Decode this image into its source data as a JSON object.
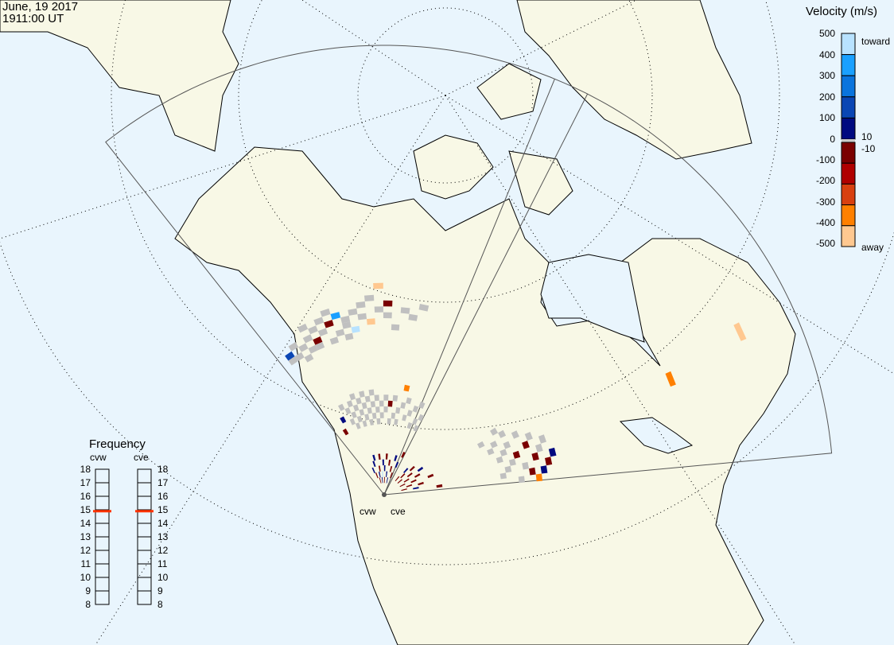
{
  "header": {
    "date": "June, 19 2017",
    "time": "1911:00 UT"
  },
  "colors": {
    "ocean": "#e9f5fd",
    "land": "#f8f8e6",
    "ground_scatter": "#c0c0c0",
    "freq_marker": "#ff3300"
  },
  "velocity_scale": {
    "title": "Velocity (m/s)",
    "ticks": [
      "500",
      "400",
      "300",
      "200",
      "100",
      "0",
      "-100",
      "-200",
      "-300",
      "-400",
      "-500"
    ],
    "toward_label": "toward",
    "away_label": "away",
    "threshold_pos": "10",
    "threshold_neg": "-10",
    "colors": [
      "#b8e2ff",
      "#1aa0ff",
      "#0a74dd",
      "#0a46b4",
      "#000a80",
      "#c8c8c8",
      "#7a0000",
      "#b00000",
      "#d84010",
      "#ff8000",
      "#ffc890"
    ]
  },
  "frequency": {
    "title": "Frequency",
    "radars": [
      {
        "name": "cvw",
        "value_mhz": 14.9
      },
      {
        "name": "cve",
        "value_mhz": 14.9
      }
    ],
    "ticks": [
      "18",
      "17",
      "16",
      "15",
      "14",
      "13",
      "12",
      "11",
      "10",
      "9",
      "8"
    ]
  },
  "radars": {
    "west_label": "cvw",
    "east_label": "cve"
  },
  "scatter": {
    "cvw": [
      [
        1,
        27,
        "gs"
      ],
      [
        1,
        28,
        160
      ],
      [
        2,
        27,
        "gs"
      ],
      [
        2,
        29,
        "gs"
      ],
      [
        3,
        26,
        "gs"
      ],
      [
        3,
        28,
        "gs"
      ],
      [
        4,
        27,
        "gs"
      ],
      [
        4,
        29,
        "gs"
      ],
      [
        4,
        31,
        "gs"
      ],
      [
        5,
        28,
        -60
      ],
      [
        5,
        30,
        "gs"
      ],
      [
        5,
        27,
        "gs"
      ],
      [
        6,
        29,
        "gs"
      ],
      [
        6,
        31,
        "gs"
      ],
      [
        7,
        30,
        -80
      ],
      [
        7,
        27,
        "gs"
      ],
      [
        7,
        32,
        "gs"
      ],
      [
        8,
        28,
        "gs"
      ],
      [
        8,
        31,
        350
      ],
      [
        9,
        30,
        "gs"
      ],
      [
        9,
        29,
        "gs"
      ],
      [
        9,
        27,
        "gs"
      ],
      [
        10,
        31,
        "gs"
      ],
      [
        10,
        28,
        450
      ],
      [
        11,
        30,
        "gs"
      ],
      [
        11,
        32,
        "gs"
      ],
      [
        12,
        29,
        -450
      ],
      [
        12,
        33,
        "gs"
      ],
      [
        13,
        31,
        "gs"
      ],
      [
        14,
        30,
        "gs"
      ],
      [
        14,
        32,
        -90
      ],
      [
        15,
        28,
        "gs"
      ],
      [
        16,
        31,
        "gs"
      ],
      [
        17,
        30,
        "gs"
      ],
      [
        18,
        32,
        "gs"
      ],
      [
        13,
        35,
        -450
      ],
      [
        2,
        12,
        -80
      ],
      [
        3,
        14,
        80
      ],
      [
        4,
        16,
        "gs"
      ],
      [
        5,
        13,
        "gs"
      ],
      [
        5,
        15,
        "gs"
      ],
      [
        6,
        12,
        "gs"
      ],
      [
        6,
        14,
        "gs"
      ],
      [
        6,
        16,
        "gs"
      ],
      [
        7,
        13,
        "gs"
      ],
      [
        7,
        15,
        "gs"
      ],
      [
        7,
        17,
        "gs"
      ],
      [
        8,
        12,
        "gs"
      ],
      [
        8,
        14,
        "gs"
      ],
      [
        8,
        16,
        "gs"
      ],
      [
        9,
        13,
        "gs"
      ],
      [
        9,
        15,
        "gs"
      ],
      [
        9,
        17,
        "gs"
      ],
      [
        10,
        12,
        "gs"
      ],
      [
        10,
        14,
        "gs"
      ],
      [
        10,
        16,
        "gs"
      ],
      [
        11,
        13,
        "gs"
      ],
      [
        11,
        15,
        "gs"
      ],
      [
        11,
        17,
        "gs"
      ],
      [
        12,
        12,
        "gs"
      ],
      [
        12,
        14,
        "gs"
      ],
      [
        12,
        16,
        "gs"
      ],
      [
        13,
        13,
        "gs"
      ],
      [
        13,
        15,
        "gs"
      ],
      [
        14,
        14,
        "gs"
      ],
      [
        14,
        16,
        "gs"
      ],
      [
        15,
        12,
        "gs"
      ],
      [
        15,
        15,
        -90
      ],
      [
        16,
        13,
        "gs"
      ],
      [
        16,
        16,
        "gs"
      ],
      [
        17,
        14,
        "gs"
      ],
      [
        17,
        12,
        "gs"
      ],
      [
        18,
        15,
        "gs"
      ],
      [
        19,
        13,
        "gs"
      ],
      [
        19,
        16,
        "gs"
      ],
      [
        20,
        14,
        "gs"
      ],
      [
        21,
        12,
        "gs"
      ],
      [
        21,
        15,
        "gs"
      ],
      [
        22,
        13,
        "gs"
      ],
      [
        22,
        16,
        "gs"
      ],
      [
        23,
        14,
        "gs"
      ],
      [
        23,
        12,
        "gs"
      ],
      [
        18,
        18,
        -350
      ],
      [
        5,
        4,
        80
      ],
      [
        6,
        3,
        -80
      ],
      [
        7,
        5,
        80
      ],
      [
        8,
        2,
        -90
      ],
      [
        8,
        6,
        80
      ],
      [
        9,
        3,
        80
      ],
      [
        10,
        4,
        -80
      ],
      [
        11,
        2,
        80
      ],
      [
        11,
        6,
        -90
      ],
      [
        12,
        3,
        450
      ],
      [
        13,
        5,
        80
      ],
      [
        14,
        2,
        -80
      ],
      [
        14,
        4,
        80
      ],
      [
        15,
        6,
        -90
      ],
      [
        16,
        3,
        80
      ],
      [
        17,
        5,
        -80
      ],
      [
        18,
        2,
        80
      ],
      [
        19,
        4,
        -90
      ],
      [
        20,
        6,
        80
      ],
      [
        21,
        3,
        -80
      ],
      [
        22,
        5,
        80
      ],
      [
        23,
        7,
        -90
      ]
    ],
    "cve": [
      [
        6,
        3,
        -90
      ],
      [
        7,
        5,
        80
      ],
      [
        8,
        4,
        -80
      ],
      [
        9,
        6,
        -90
      ],
      [
        10,
        3,
        -80
      ],
      [
        11,
        5,
        -90
      ],
      [
        12,
        7,
        80
      ],
      [
        13,
        4,
        -80
      ],
      [
        14,
        6,
        -90
      ],
      [
        15,
        3,
        -80
      ],
      [
        16,
        5,
        -90
      ],
      [
        17,
        8,
        -80
      ],
      [
        18,
        4,
        -90
      ],
      [
        19,
        6,
        -80
      ],
      [
        20,
        3,
        -90
      ],
      [
        21,
        5,
        80
      ],
      [
        22,
        9,
        -90
      ],
      [
        16,
        20,
        "gs"
      ],
      [
        16,
        24,
        "gs"
      ],
      [
        17,
        19,
        "gs"
      ],
      [
        17,
        22,
        "gs"
      ],
      [
        17,
        26,
        "gs"
      ],
      [
        18,
        21,
        "gs"
      ],
      [
        18,
        25,
        -90
      ],
      [
        18,
        28,
        "gs"
      ],
      [
        19,
        20,
        "gs"
      ],
      [
        19,
        23,
        -90
      ],
      [
        19,
        27,
        "gs"
      ],
      [
        20,
        22,
        "gs"
      ],
      [
        20,
        26,
        -90
      ],
      [
        20,
        29,
        80
      ],
      [
        21,
        21,
        "gs"
      ],
      [
        21,
        24,
        "gs"
      ],
      [
        21,
        28,
        -90
      ],
      [
        22,
        20,
        "gs"
      ],
      [
        22,
        25,
        -90
      ],
      [
        22,
        27,
        80
      ],
      [
        23,
        23,
        "gs"
      ],
      [
        23,
        26,
        -350
      ],
      [
        15,
        22,
        "gs"
      ],
      [
        15,
        18,
        "gs"
      ],
      [
        14,
        21,
        "gs"
      ],
      [
        17,
        52,
        -350
      ],
      [
        16,
        66,
        -450
      ]
    ]
  }
}
